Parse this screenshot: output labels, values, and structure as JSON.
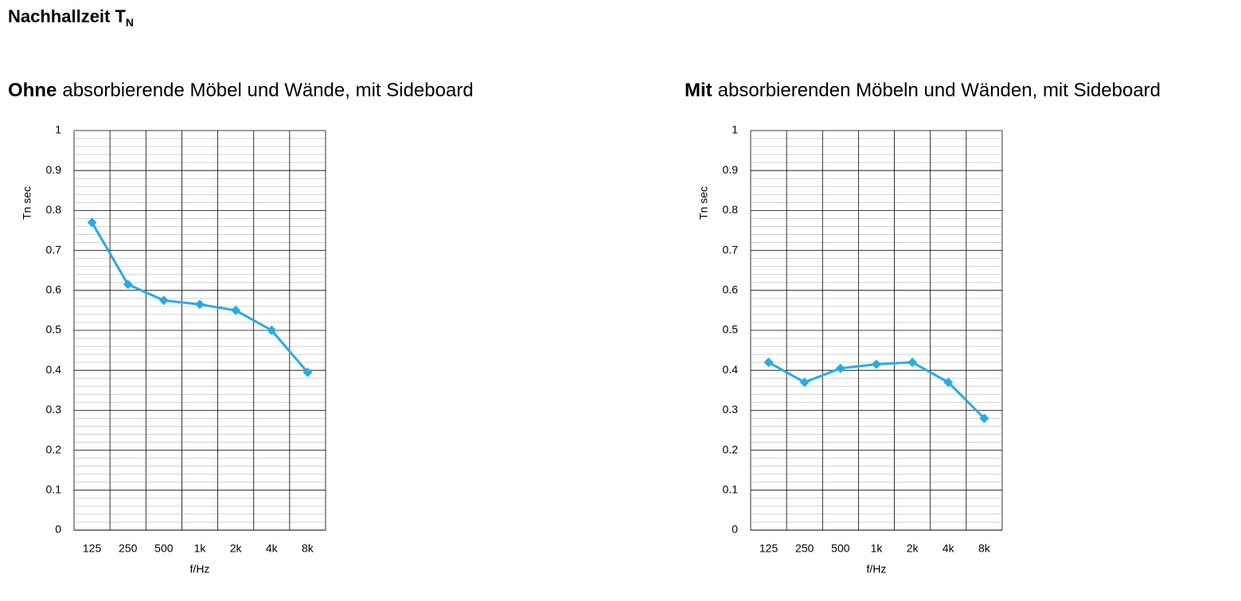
{
  "header": {
    "title": "Nachhallzeit T",
    "subscript": "N"
  },
  "chart_data": [
    {
      "type": "line",
      "title_emphasis": "Ohne",
      "title": "absorbierende Möbel und Wände, mit Sideboard",
      "x_label": "f/Hz",
      "y_label": "Tn sec",
      "categories": [
        "125",
        "250",
        "500",
        "1k",
        "2k",
        "4k",
        "8k"
      ],
      "series": [
        {
          "color": "#29abe2",
          "values": [
            0.77,
            0.615,
            0.575,
            0.565,
            0.55,
            0.5,
            0.395
          ]
        }
      ],
      "ylim": [
        0,
        1
      ],
      "yticks": [
        0,
        0.1,
        0.2,
        0.3,
        0.4,
        0.5,
        0.6,
        0.7,
        0.8,
        0.9,
        1
      ],
      "grid": true
    },
    {
      "type": "line",
      "title_emphasis": "Mit",
      "title": "absorbierenden Möbeln und Wänden, mit Sideboard",
      "x_label": "f/Hz",
      "y_label": "Tn sec",
      "categories": [
        "125",
        "250",
        "500",
        "1k",
        "2k",
        "4k",
        "8k"
      ],
      "series": [
        {
          "color": "#29abe2",
          "values": [
            0.42,
            0.37,
            0.405,
            0.415,
            0.42,
            0.37,
            0.28
          ]
        }
      ],
      "ylim": [
        0,
        1
      ],
      "yticks": [
        0,
        0.1,
        0.2,
        0.3,
        0.4,
        0.5,
        0.6,
        0.7,
        0.8,
        0.9,
        1
      ],
      "grid": true
    }
  ]
}
